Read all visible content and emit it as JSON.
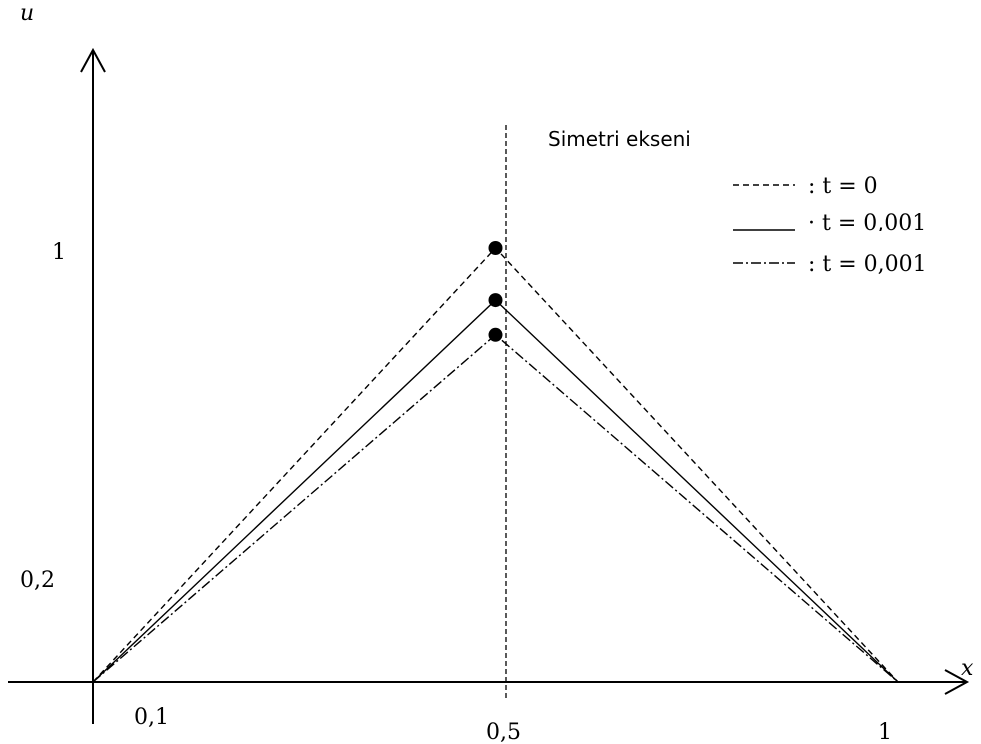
{
  "chart_data": {
    "type": "line",
    "xlabel": "x",
    "ylabel": "u",
    "xlim": [
      0,
      1.1
    ],
    "ylim": [
      0,
      1.6
    ],
    "x_ticks": [
      {
        "label": "0,1",
        "value": 0.1
      },
      {
        "label": "0,5",
        "value": 0.5
      },
      {
        "label": "1",
        "value": 1
      }
    ],
    "y_ticks": [
      {
        "label": "0,2",
        "value": 0.2
      },
      {
        "label": "1",
        "value": 1
      }
    ],
    "symmetry_axis": {
      "x": 0.5,
      "label": "Simetri ekseni"
    },
    "series": [
      {
        "name": ": t = 0",
        "style": "dashed",
        "x": [
          0,
          0.5,
          1
        ],
        "y": [
          0,
          1.0,
          0
        ]
      },
      {
        "name": "· t = 0,001",
        "style": "solid",
        "x": [
          0,
          0.5,
          1
        ],
        "y": [
          0,
          0.88,
          0
        ]
      },
      {
        "name": ": t = 0,001",
        "style": "dashdot",
        "x": [
          0,
          0.5,
          1
        ],
        "y": [
          0,
          0.8,
          0
        ]
      }
    ],
    "legend_position": "top-right",
    "grid": false,
    "line_color": "#000000",
    "background": "#ffffff"
  }
}
